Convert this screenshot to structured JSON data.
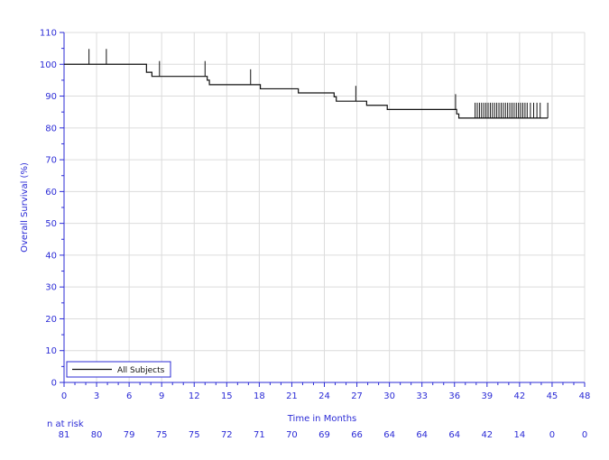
{
  "chart_data": {
    "type": "line",
    "title": "",
    "xlabel": "Time in Months",
    "ylabel": "Overall Survival (%)",
    "xlim": [
      0,
      48
    ],
    "ylim": [
      0,
      110
    ],
    "x_ticks": [
      0,
      3,
      6,
      9,
      12,
      15,
      18,
      21,
      24,
      27,
      30,
      33,
      36,
      39,
      42,
      45,
      48
    ],
    "y_ticks": [
      0,
      10,
      20,
      30,
      40,
      50,
      60,
      70,
      80,
      90,
      100,
      110
    ],
    "grid": true,
    "legend": {
      "placement": "bottom-left",
      "entries": [
        "All Subjects"
      ]
    },
    "series": [
      {
        "name": "All Subjects",
        "steps": [
          [
            0,
            100
          ],
          [
            7.6,
            97.5
          ],
          [
            8.1,
            96.2
          ],
          [
            13.2,
            95.0
          ],
          [
            13.4,
            93.6
          ],
          [
            18.1,
            92.3
          ],
          [
            21.6,
            91.0
          ],
          [
            24.9,
            89.8
          ],
          [
            25.1,
            88.4
          ],
          [
            27.9,
            87.1
          ],
          [
            29.8,
            85.8
          ],
          [
            36.2,
            84.4
          ],
          [
            36.4,
            83.1
          ],
          [
            44.6,
            83.1
          ]
        ],
        "censor_times": [
          2.3,
          3.9,
          8.8,
          13.0,
          17.2,
          26.9,
          36.1,
          37.9,
          38.1,
          38.3,
          38.5,
          38.7,
          38.9,
          39.1,
          39.3,
          39.5,
          39.7,
          39.9,
          40.1,
          40.3,
          40.5,
          40.7,
          40.9,
          41.1,
          41.3,
          41.5,
          41.7,
          41.9,
          42.1,
          42.3,
          42.5,
          42.7,
          43.0,
          43.3,
          43.6,
          43.9,
          44.6
        ]
      }
    ],
    "risk_table": {
      "label": "n at risk",
      "times": [
        0,
        3,
        6,
        9,
        12,
        15,
        18,
        21,
        24,
        27,
        30,
        33,
        36,
        39,
        42,
        45,
        48
      ],
      "counts": [
        "81",
        "80",
        "79",
        "75",
        "75",
        "72",
        "71",
        "70",
        "69",
        "66",
        "64",
        "64",
        "64",
        "42",
        "14",
        "0",
        "0"
      ]
    }
  }
}
